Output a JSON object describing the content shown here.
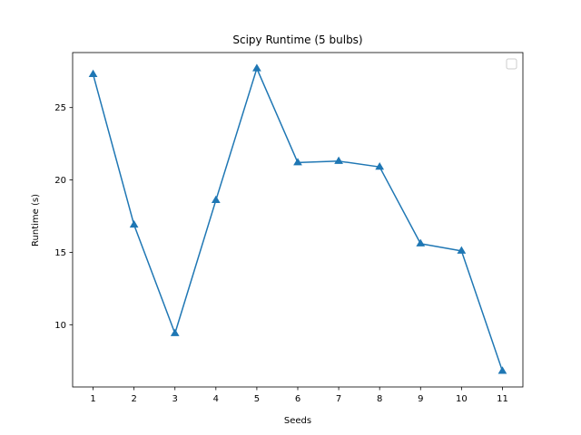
{
  "chart_data": {
    "type": "line",
    "title": "Scipy Runtime (5 bulbs)",
    "xlabel": "Seeds",
    "ylabel": "Runtime (s)",
    "x": [
      1,
      2,
      3,
      4,
      5,
      6,
      7,
      8,
      9,
      10,
      11
    ],
    "series": [
      {
        "values": [
          27.3,
          16.9,
          9.4,
          18.6,
          27.7,
          21.2,
          21.3,
          20.9,
          15.6,
          15.1,
          6.8
        ],
        "color": "#1f77b4",
        "marker": "triangle-up"
      }
    ],
    "xlim": [
      0.5,
      11.5
    ],
    "ylim": [
      5.7,
      28.8
    ],
    "xticks": [
      1,
      2,
      3,
      4,
      5,
      6,
      7,
      8,
      9,
      10,
      11
    ],
    "yticks": [
      10,
      15,
      20,
      25
    ],
    "grid": false,
    "legend": "top-right (empty)"
  }
}
